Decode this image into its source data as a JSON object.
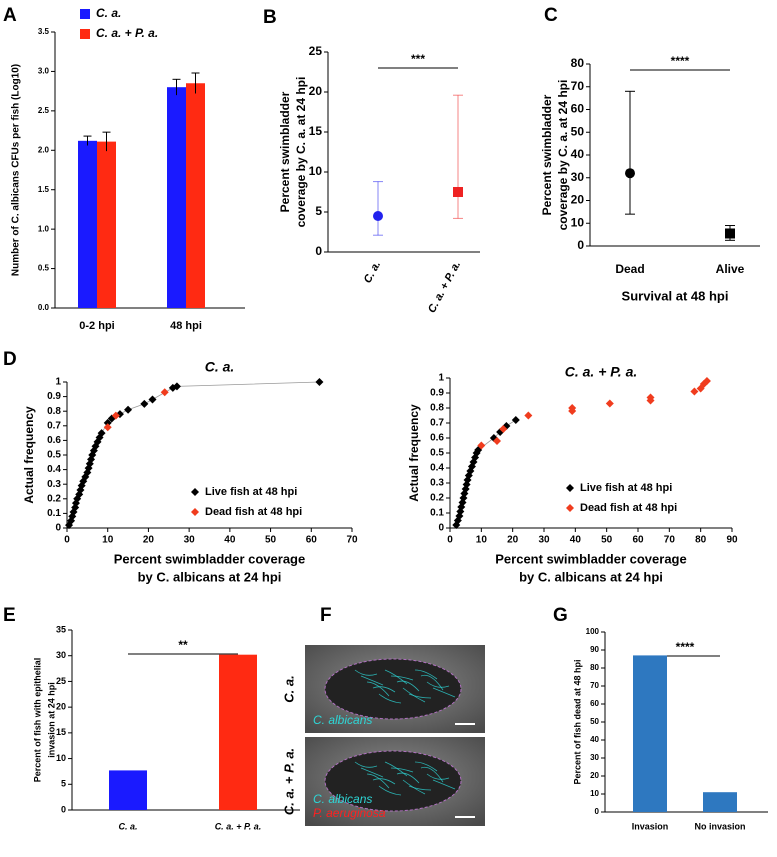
{
  "chart_data": [
    {
      "type": "bar",
      "panel": "A",
      "categories": [
        "0-2 hpi",
        "48 hpi"
      ],
      "series": [
        {
          "name": "C. a.",
          "color": "#1a1aff",
          "values": [
            2.12,
            2.8
          ],
          "errors": [
            0.06,
            0.1
          ]
        },
        {
          "name": "C. a. + P. a.",
          "color": "#ff2a12",
          "values": [
            2.11,
            2.85
          ],
          "errors": [
            0.12,
            0.13
          ]
        }
      ],
      "ylabel": [
        "Number of C. albicans CFUs per fish (Log10)"
      ],
      "ylim": [
        0,
        3.5
      ],
      "yticks": [
        {
          "value": 0,
          "label": "0.0"
        },
        0.5,
        {
          "value": 1,
          "label": "1.0"
        },
        1.5,
        {
          "value": 2,
          "label": "2.0"
        },
        2.5,
        {
          "value": 3,
          "label": "3.0"
        },
        3.5
      ]
    },
    {
      "type": "errorbar",
      "panel": "B",
      "categories": [
        "C. a.",
        "C. a. + P. a."
      ],
      "values": [
        4.5,
        7.5
      ],
      "lower": [
        2.1,
        4.2
      ],
      "upper": [
        8.8,
        19.6
      ],
      "colors": [
        "#2222ee",
        "#ee2222"
      ],
      "markers": [
        "circle",
        "square"
      ],
      "ylabel": [
        "Percent swimbladder",
        "coverage by C. a. at 24 hpi"
      ],
      "significance": "***",
      "ylim": [
        0,
        25
      ],
      "yticks": [
        0,
        5,
        10,
        15,
        20,
        25
      ]
    },
    {
      "type": "errorbar",
      "panel": "C",
      "categories": [
        "Dead",
        "Alive"
      ],
      "values": [
        32,
        5.5
      ],
      "lower": [
        14,
        2.5
      ],
      "upper": [
        68,
        9
      ],
      "colors": [
        "#000000",
        "#000000"
      ],
      "markers": [
        "circle",
        "square"
      ],
      "ylabel": [
        "Percent swimbladder",
        "coverage by C. a. at 24 hpi"
      ],
      "xlabel": [
        "Survival at 48 hpi"
      ],
      "significance": "****",
      "ylim": [
        0,
        80
      ],
      "yticks": [
        0,
        10,
        20,
        30,
        40,
        50,
        60,
        70,
        80
      ]
    },
    {
      "type": "scatter",
      "panel": "D",
      "title": "C. a.",
      "series": [
        {
          "name": "Live fish at 48 hpi",
          "color": "#000000",
          "x": [
            0.5,
            1,
            1.3,
            1.6,
            2,
            2.2,
            2.5,
            3,
            3.3,
            3.6,
            4,
            4.5,
            5,
            5.3,
            5.6,
            5.9,
            6.2,
            6.6,
            7,
            7.5,
            8,
            8.5,
            10,
            11,
            13,
            15,
            19,
            21,
            26,
            27,
            62
          ],
          "values": [
            0.02,
            0.05,
            0.08,
            0.11,
            0.14,
            0.17,
            0.2,
            0.23,
            0.26,
            0.29,
            0.32,
            0.35,
            0.38,
            0.41,
            0.44,
            0.47,
            0.5,
            0.53,
            0.56,
            0.59,
            0.62,
            0.65,
            0.72,
            0.75,
            0.78,
            0.81,
            0.85,
            0.88,
            0.96,
            0.97,
            1
          ]
        },
        {
          "name": "Dead fish at 48 hpi",
          "color": "#f03c1e",
          "x": [
            10,
            12,
            24
          ],
          "values": [
            0.69,
            0.77,
            0.93
          ]
        }
      ],
      "ylabel": [
        "Actual frequency"
      ],
      "xlabel": [
        "Percent swimbladder coverage",
        "by C. albicans at 24 hpi"
      ],
      "xlim": [
        0,
        70
      ],
      "xticks": [
        0,
        10,
        20,
        30,
        40,
        50,
        60,
        70
      ],
      "ylim": [
        0,
        1
      ],
      "yticks": [
        0,
        0.1,
        0.2,
        0.3,
        0.4,
        0.5,
        0.6,
        0.7,
        0.8,
        0.9,
        1
      ]
    },
    {
      "type": "scatter",
      "title": "C. a. + P. a.",
      "series": [
        {
          "name": "Live fish at 48 hpi",
          "color": "#000000",
          "x": [
            2,
            2.5,
            3,
            3.3,
            3.6,
            4,
            4.3,
            4.6,
            5,
            5.3,
            5.6,
            6,
            6.5,
            7,
            7.5,
            8,
            8.5,
            9,
            14,
            16,
            18,
            21
          ],
          "values": [
            0.02,
            0.05,
            0.08,
            0.11,
            0.14,
            0.17,
            0.2,
            0.23,
            0.26,
            0.29,
            0.32,
            0.35,
            0.38,
            0.41,
            0.44,
            0.47,
            0.5,
            0.52,
            0.6,
            0.64,
            0.68,
            0.72
          ]
        },
        {
          "name": "Dead fish at 48 hpi",
          "color": "#f03c1e",
          "x": [
            10,
            15,
            17,
            25,
            39,
            39,
            51,
            64,
            64,
            78,
            80,
            81,
            82
          ],
          "values": [
            0.55,
            0.58,
            0.66,
            0.75,
            0.78,
            0.8,
            0.83,
            0.85,
            0.87,
            0.91,
            0.93,
            0.96,
            0.98
          ]
        }
      ],
      "ylabel": [
        "Actual frequency"
      ],
      "xlabel": [
        "Percent swimbladder coverage",
        "by C. albicans at 24 hpi"
      ],
      "xlim": [
        0,
        90
      ],
      "xticks": [
        0,
        10,
        20,
        30,
        40,
        50,
        60,
        70,
        80,
        90
      ],
      "ylim": [
        0,
        1
      ],
      "yticks": [
        0,
        0.1,
        0.2,
        0.3,
        0.4,
        0.5,
        0.6,
        0.7,
        0.8,
        0.9,
        1
      ]
    },
    {
      "type": "bar",
      "panel": "E",
      "categories": [
        "C. a.",
        "C. a. + P. a."
      ],
      "values": [
        7.7,
        30.2
      ],
      "colors": [
        "#1a1aff",
        "#ff2a12"
      ],
      "ylabel": [
        "Percent of fish with epithelial",
        "invasion at 24 hpi"
      ],
      "significance": "**",
      "ylim": [
        0,
        35
      ],
      "yticks": [
        0,
        5,
        10,
        15,
        20,
        25,
        30,
        35
      ]
    },
    {
      "type": "image",
      "panel": "F",
      "row_labels": [
        "C. a.",
        "C. a. + P. a."
      ],
      "overlays": [
        [
          "C. albicans"
        ],
        [
          "C. albicans",
          "P. aeruginosa"
        ]
      ]
    },
    {
      "type": "bar",
      "panel": "G",
      "categories": [
        "Invasion",
        "No invasion"
      ],
      "values": [
        87,
        11
      ],
      "color": "#2e78c0",
      "ylabel": [
        "Percent of fish dead at 48 hpi"
      ],
      "significance": "****",
      "ylim": [
        0,
        100
      ],
      "yticks": [
        0,
        10,
        20,
        30,
        40,
        50,
        60,
        70,
        80,
        90,
        100
      ]
    }
  ]
}
